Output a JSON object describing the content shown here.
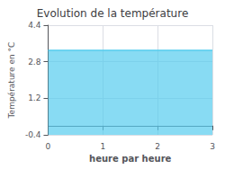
{
  "chart_data": {
    "type": "area",
    "title": "Evolution de la température",
    "xlabel": "heure par heure",
    "ylabel": "Température en °C",
    "x": [
      0,
      3
    ],
    "values": [
      3.3,
      3.3
    ],
    "color": "#55ccee",
    "xlim": [
      0,
      3
    ],
    "xticks": [
      0,
      1,
      2,
      3
    ],
    "ylim": [
      -0.4,
      4.4
    ],
    "yticks": [
      -0.4,
      1.2,
      2.8,
      4.4
    ],
    "grid": true
  }
}
